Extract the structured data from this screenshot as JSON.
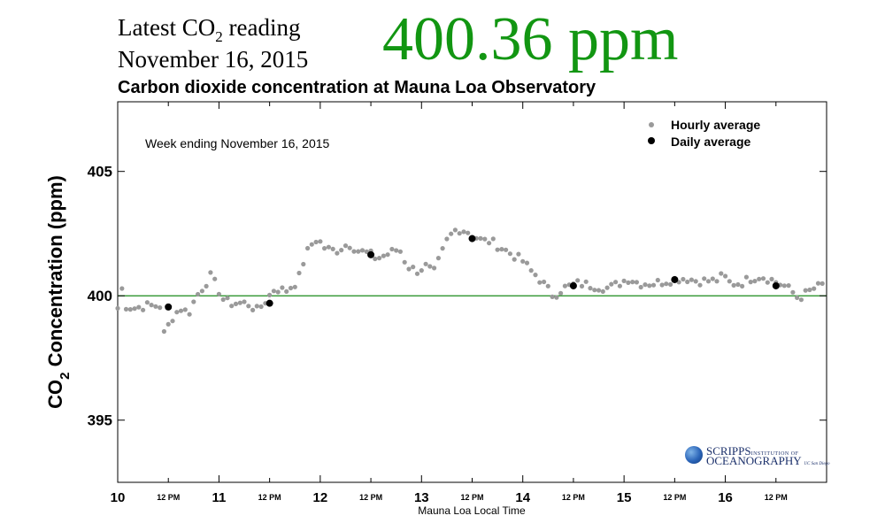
{
  "header": {
    "latest_label_pre": "Latest CO",
    "latest_label_sub": "2",
    "latest_label_post": " reading",
    "date": "November 16, 2015",
    "reading": "400.36 ppm",
    "reading_color": "#129612"
  },
  "logo": {
    "name_main": "SCRIPPS",
    "name_small": "INSTITUTION OF",
    "name_line2": "OCEANOGRAPHY",
    "name_line2_small": "UC San Diego"
  },
  "chart_data": {
    "type": "scatter",
    "title": "Carbon dioxide concentration at Mauna Loa Observatory",
    "annotation": "Week ending November 16, 2015",
    "xlabel": "Mauna Loa Local Time",
    "ylabel_pre": "CO",
    "ylabel_sub": "2",
    "ylabel_post": " Concentration (ppm)",
    "xlim": [
      10,
      17
    ],
    "ylim": [
      392.5,
      407.8
    ],
    "x_ticks": [
      {
        "value": 10,
        "label": "10",
        "major": true
      },
      {
        "value": 10.5,
        "label": "12 PM",
        "major": false
      },
      {
        "value": 11,
        "label": "11",
        "major": true
      },
      {
        "value": 11.5,
        "label": "12 PM",
        "major": false
      },
      {
        "value": 12,
        "label": "12",
        "major": true
      },
      {
        "value": 12.5,
        "label": "12 PM",
        "major": false
      },
      {
        "value": 13,
        "label": "13",
        "major": true
      },
      {
        "value": 13.5,
        "label": "12 PM",
        "major": false
      },
      {
        "value": 14,
        "label": "14",
        "major": true
      },
      {
        "value": 14.5,
        "label": "12 PM",
        "major": false
      },
      {
        "value": 15,
        "label": "15",
        "major": true
      },
      {
        "value": 15.5,
        "label": "12 PM",
        "major": false
      },
      {
        "value": 16,
        "label": "16",
        "major": true
      },
      {
        "value": 16.5,
        "label": "12 PM",
        "major": false
      }
    ],
    "y_ticks": [
      395,
      400,
      405
    ],
    "reference_line": {
      "value": 400,
      "color": "#1a8a1a"
    },
    "legend": {
      "position": "top-right",
      "items": [
        {
          "label": "Hourly average",
          "color": "#9a9a9a"
        },
        {
          "label": "Daily average",
          "color": "#000000"
        }
      ]
    },
    "hourly_anchors": [
      [
        10.0,
        399.5
      ],
      [
        10.04,
        400.3
      ],
      [
        10.08,
        399.6
      ],
      [
        10.16,
        399.5
      ],
      [
        10.28,
        399.6
      ],
      [
        10.42,
        399.6
      ],
      [
        10.45,
        398.4
      ],
      [
        10.5,
        398.8
      ],
      [
        10.55,
        399.2
      ],
      [
        10.62,
        399.5
      ],
      [
        10.7,
        399.3
      ],
      [
        10.78,
        400.0
      ],
      [
        10.85,
        400.4
      ],
      [
        10.92,
        400.8
      ],
      [
        11.0,
        400.2
      ],
      [
        11.05,
        399.8
      ],
      [
        11.12,
        399.7
      ],
      [
        11.28,
        399.7
      ],
      [
        11.38,
        399.4
      ],
      [
        11.48,
        399.9
      ],
      [
        11.55,
        400.3
      ],
      [
        11.66,
        400.2
      ],
      [
        11.78,
        400.6
      ],
      [
        11.85,
        401.6
      ],
      [
        11.92,
        402.1
      ],
      [
        11.97,
        402.3
      ],
      [
        12.05,
        401.9
      ],
      [
        12.15,
        401.8
      ],
      [
        12.28,
        402.1
      ],
      [
        12.38,
        401.8
      ],
      [
        12.48,
        401.7
      ],
      [
        12.56,
        401.5
      ],
      [
        12.68,
        401.7
      ],
      [
        12.78,
        401.9
      ],
      [
        12.86,
        401.2
      ],
      [
        12.95,
        401.0
      ],
      [
        13.05,
        401.2
      ],
      [
        13.12,
        400.9
      ],
      [
        13.18,
        401.5
      ],
      [
        13.26,
        402.3
      ],
      [
        13.35,
        402.7
      ],
      [
        13.45,
        402.6
      ],
      [
        13.52,
        402.4
      ],
      [
        13.6,
        402.2
      ],
      [
        13.68,
        402.2
      ],
      [
        13.76,
        402.0
      ],
      [
        13.84,
        401.8
      ],
      [
        13.92,
        401.6
      ],
      [
        14.0,
        401.4
      ],
      [
        14.08,
        401.0
      ],
      [
        14.14,
        400.8
      ],
      [
        14.2,
        400.5
      ],
      [
        14.3,
        400.0
      ],
      [
        14.4,
        400.3
      ],
      [
        14.55,
        400.5
      ],
      [
        14.7,
        400.4
      ],
      [
        14.85,
        400.3
      ],
      [
        14.95,
        400.5
      ],
      [
        15.05,
        400.7
      ],
      [
        15.15,
        400.5
      ],
      [
        15.3,
        400.5
      ],
      [
        15.42,
        400.6
      ],
      [
        15.55,
        400.7
      ],
      [
        15.62,
        400.7
      ],
      [
        15.72,
        400.6
      ],
      [
        15.82,
        400.6
      ],
      [
        15.9,
        400.6
      ],
      [
        15.98,
        400.8
      ],
      [
        16.05,
        400.5
      ],
      [
        16.15,
        400.5
      ],
      [
        16.25,
        400.7
      ],
      [
        16.35,
        400.8
      ],
      [
        16.48,
        400.6
      ],
      [
        16.58,
        400.4
      ],
      [
        16.65,
        400.2
      ],
      [
        16.72,
        399.9
      ],
      [
        16.8,
        400.1
      ],
      [
        16.88,
        400.3
      ],
      [
        17.0,
        400.5
      ]
    ],
    "daily_average": [
      {
        "x": 10.5,
        "y": 399.55
      },
      {
        "x": 11.5,
        "y": 399.7
      },
      {
        "x": 12.5,
        "y": 401.65
      },
      {
        "x": 13.5,
        "y": 402.3
      },
      {
        "x": 14.5,
        "y": 400.4
      },
      {
        "x": 15.5,
        "y": 400.65
      },
      {
        "x": 16.5,
        "y": 400.4
      }
    ]
  }
}
